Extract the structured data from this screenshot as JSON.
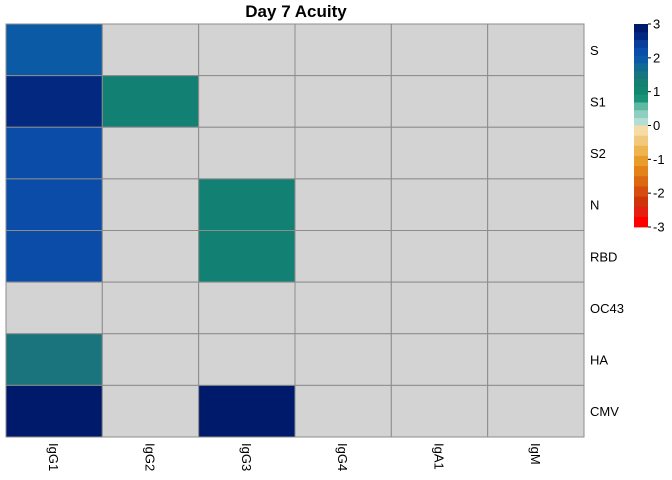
{
  "chart_data": {
    "type": "heatmap",
    "title": "Day 7 Acuity",
    "rows": [
      "S",
      "S1",
      "S2",
      "N",
      "RBD",
      "OC43",
      "HA",
      "CMV"
    ],
    "columns": [
      "IgG1",
      "IgG2",
      "IgG3",
      "IgG4",
      "IgA1",
      "IgM"
    ],
    "values": [
      [
        1.9,
        null,
        null,
        null,
        null,
        null
      ],
      [
        2.6,
        1.3,
        null,
        null,
        null,
        null
      ],
      [
        2.2,
        null,
        null,
        null,
        null,
        null
      ],
      [
        2.2,
        null,
        1.3,
        null,
        null,
        null
      ],
      [
        2.2,
        null,
        1.3,
        null,
        null,
        null
      ],
      [
        null,
        null,
        null,
        null,
        null,
        null
      ],
      [
        1.5,
        null,
        null,
        null,
        null,
        null
      ],
      [
        2.9,
        null,
        2.9,
        null,
        null,
        null
      ]
    ],
    "missing_color": "#d3d3d3",
    "grid_color": "#8c8c8c",
    "color_scale": {
      "range": [
        -3,
        3
      ],
      "ticks": [
        "3",
        "2",
        "1",
        "0",
        "-1",
        "-2",
        "-3"
      ],
      "positive_colors": [
        "#b3ded5",
        "#8fcfc0",
        "#5fb8a2",
        "#1a9478",
        "#11876d",
        "#138074",
        "#1a747d",
        "#0f6a94",
        "#0b5aa5",
        "#0a4ca8",
        "#083d9c",
        "#03287f",
        "#001a6b"
      ],
      "negative_colors": [
        "#f5dca6",
        "#f2c97a",
        "#eeb44f",
        "#e99c2b",
        "#e38219",
        "#dd6812",
        "#d64e0d",
        "#cf350b",
        "#e52012",
        "#ff0000"
      ]
    }
  }
}
